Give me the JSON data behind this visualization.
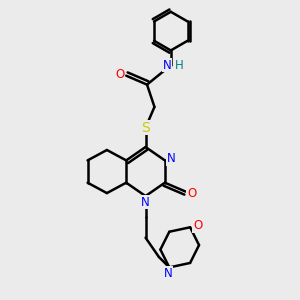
{
  "bg_color": "#ebebeb",
  "bond_color": "#000000",
  "bond_width": 1.8,
  "atom_colors": {
    "N": "#0000ff",
    "O": "#ff0000",
    "S": "#cccc00",
    "H": "#008080",
    "C": "#000000"
  },
  "font_size": 8.5,
  "figsize": [
    3.0,
    3.0
  ],
  "dpi": 100
}
